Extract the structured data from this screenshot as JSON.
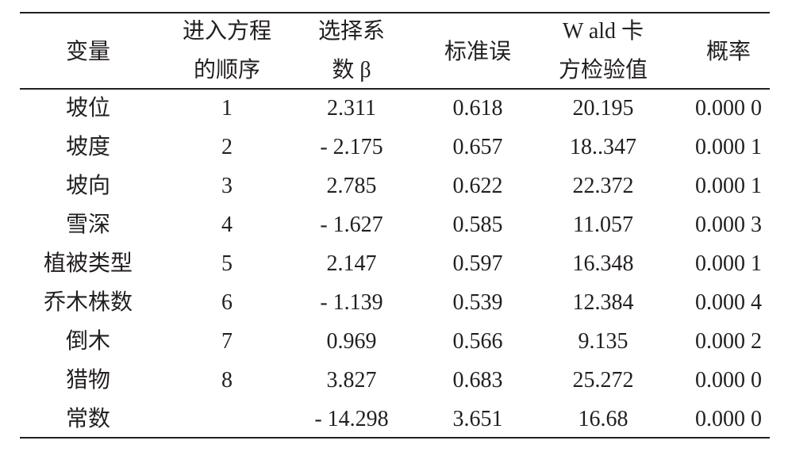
{
  "table": {
    "headers": [
      [
        "变量"
      ],
      [
        "进入方程",
        "的顺序"
      ],
      [
        "选择系",
        "数 β"
      ],
      [
        "标准误"
      ],
      [
        "W ald 卡",
        "方检验值"
      ],
      [
        "概率"
      ]
    ],
    "rows": [
      [
        "坡位",
        "1",
        "2.311",
        "0.618",
        "20.195",
        "0.000 0"
      ],
      [
        "坡度",
        "2",
        "- 2.175",
        "0.657",
        "18..347",
        "0.000 1"
      ],
      [
        "坡向",
        "3",
        "2.785",
        "0.622",
        "22.372",
        "0.000 1"
      ],
      [
        "雪深",
        "4",
        "- 1.627",
        "0.585",
        "11.057",
        "0.000 3"
      ],
      [
        "植被类型",
        "5",
        "2.147",
        "0.597",
        "16.348",
        "0.000 1"
      ],
      [
        "乔木株数",
        "6",
        "- 1.139",
        "0.539",
        "12.384",
        "0.000 4"
      ],
      [
        "倒木",
        "7",
        "0.969",
        "0.566",
        "9.135",
        "0.000 2"
      ],
      [
        "猎物",
        "8",
        "3.827",
        "0.683",
        "25.272",
        "0.000 0"
      ],
      [
        "常数",
        null,
        "- 14.298",
        "3.651",
        "16.68",
        "0.000 0"
      ]
    ]
  }
}
